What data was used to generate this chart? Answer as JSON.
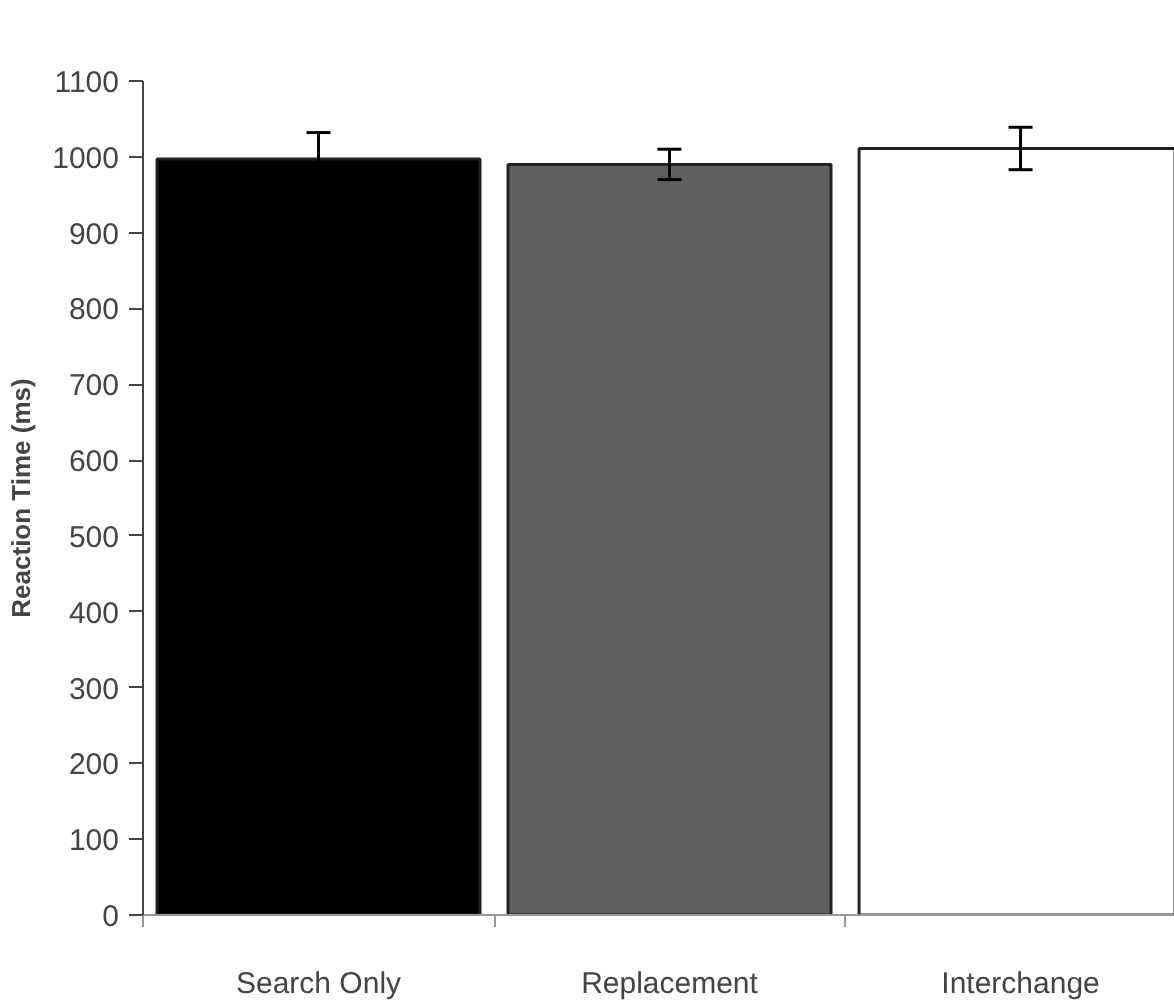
{
  "chart_data": {
    "type": "bar",
    "ylabel": "Reaction Time (ms)",
    "categories": [
      "Search Only",
      "Replacement",
      "Interchange"
    ],
    "values": [
      997,
      990,
      1011
    ],
    "colors": [
      "#000000",
      "#606060",
      "#ffffff"
    ],
    "errors": [
      35,
      20,
      28
    ],
    "ylim": [
      0,
      1100
    ],
    "yticks": [
      0,
      100,
      200,
      300,
      400,
      500,
      600,
      700,
      800,
      900,
      1000,
      1100
    ],
    "grid": false
  }
}
